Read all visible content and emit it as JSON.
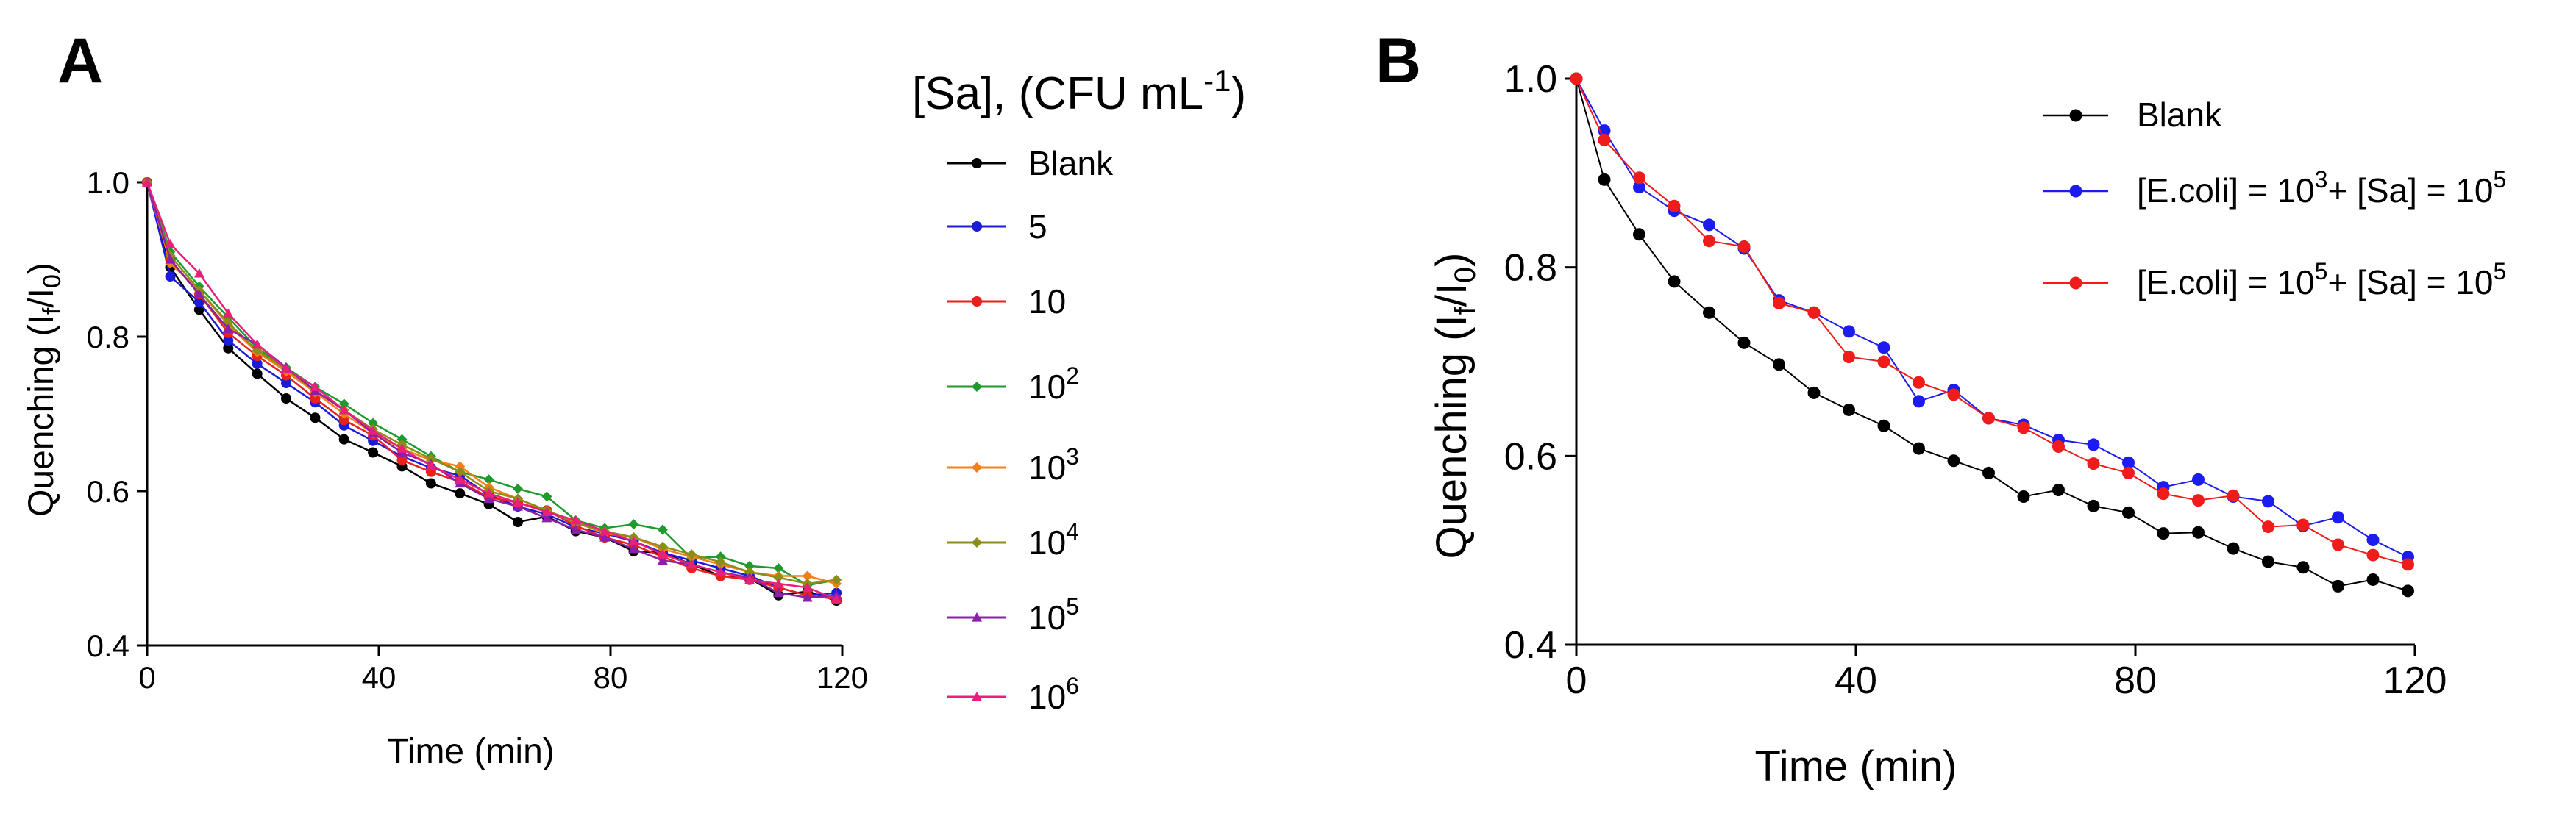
{
  "panels": {
    "a": {
      "letter": "A"
    },
    "b": {
      "letter": "B"
    }
  },
  "chart_data": [
    {
      "type": "line",
      "panel": "A",
      "xlabel": "Time (min)",
      "ylabel": "Quenching (I_f/I_0)",
      "ylabel_parts": {
        "main": "Quenching (I",
        "sub1": "f",
        "mid": "/I",
        "sub2": "0",
        "end": ")"
      },
      "xlim": [
        0,
        120
      ],
      "ylim": [
        0.4,
        1.0
      ],
      "x_ticks": [
        0,
        40,
        80,
        120
      ],
      "x_tick_labels": [
        "0",
        "40",
        "80",
        "120"
      ],
      "y_ticks": [
        0.4,
        0.6,
        0.8,
        1.0
      ],
      "y_tick_labels": [
        "0.4",
        "0.6",
        "0.8",
        "1.0"
      ],
      "legend_title": {
        "main": "[Sa], (CFU mL",
        "sup": "-1",
        "end": ")"
      },
      "legend_placement": "right",
      "grid": false,
      "x": [
        0,
        4,
        9,
        14,
        19,
        24,
        29,
        34,
        39,
        44,
        49,
        54,
        59,
        64,
        69,
        74,
        79,
        84,
        89,
        94,
        99,
        104,
        109,
        114,
        119
      ],
      "series": [
        {
          "name": "Blank",
          "label": {
            "base": "Blank",
            "sup": ""
          },
          "color": "#000000",
          "marker": "circle",
          "values": [
            1.0,
            0.89,
            0.835,
            0.785,
            0.752,
            0.72,
            0.695,
            0.667,
            0.65,
            0.632,
            0.61,
            0.597,
            0.583,
            0.56,
            0.567,
            0.548,
            0.54,
            0.522,
            0.52,
            0.505,
            0.49,
            0.487,
            0.465,
            0.47,
            0.458
          ]
        },
        {
          "name": "5",
          "label": {
            "base": "5",
            "sup": ""
          },
          "color": "#1c1cd8",
          "marker": "circle",
          "values": [
            1.0,
            0.878,
            0.845,
            0.795,
            0.765,
            0.74,
            0.715,
            0.685,
            0.665,
            0.645,
            0.63,
            0.62,
            0.595,
            0.58,
            0.57,
            0.553,
            0.545,
            0.535,
            0.52,
            0.51,
            0.5,
            0.49,
            0.475,
            0.465,
            0.468
          ]
        },
        {
          "name": "10",
          "label": {
            "base": "10",
            "sup": ""
          },
          "color": "#e8211c",
          "marker": "circle",
          "values": [
            1.0,
            0.9,
            0.855,
            0.805,
            0.775,
            0.75,
            0.72,
            0.692,
            0.672,
            0.64,
            0.625,
            0.612,
            0.592,
            0.585,
            0.575,
            0.555,
            0.54,
            0.53,
            0.515,
            0.5,
            0.49,
            0.485,
            0.475,
            0.465,
            0.46
          ]
        },
        {
          "name": "10^2",
          "label": {
            "base": "10",
            "sup": "2"
          },
          "color": "#1e9a2e",
          "marker": "diamond",
          "values": [
            1.0,
            0.91,
            0.865,
            0.825,
            0.785,
            0.76,
            0.735,
            0.713,
            0.688,
            0.667,
            0.645,
            0.625,
            0.615,
            0.603,
            0.593,
            0.562,
            0.552,
            0.557,
            0.55,
            0.513,
            0.515,
            0.503,
            0.5,
            0.478,
            0.485
          ]
        },
        {
          "name": "10^3",
          "label": {
            "base": "10",
            "sup": "3"
          },
          "color": "#f57f17",
          "marker": "diamond",
          "values": [
            1.0,
            0.895,
            0.86,
            0.815,
            0.78,
            0.755,
            0.728,
            0.7,
            0.675,
            0.655,
            0.64,
            0.632,
            0.605,
            0.59,
            0.575,
            0.56,
            0.545,
            0.54,
            0.525,
            0.515,
            0.505,
            0.495,
            0.49,
            0.49,
            0.48
          ]
        },
        {
          "name": "10^4",
          "label": {
            "base": "10",
            "sup": "4"
          },
          "color": "#8c8c1a",
          "marker": "diamond",
          "values": [
            1.0,
            0.905,
            0.86,
            0.818,
            0.782,
            0.758,
            0.73,
            0.705,
            0.68,
            0.66,
            0.642,
            0.625,
            0.6,
            0.59,
            0.575,
            0.558,
            0.548,
            0.54,
            0.528,
            0.518,
            0.508,
            0.495,
            0.488,
            0.48,
            0.485
          ]
        },
        {
          "name": "10^5",
          "label": {
            "base": "10",
            "sup": "5"
          },
          "color": "#8b1fa9",
          "marker": "triangle",
          "values": [
            1.0,
            0.9,
            0.855,
            0.81,
            0.79,
            0.76,
            0.73,
            0.705,
            0.675,
            0.65,
            0.635,
            0.61,
            0.59,
            0.58,
            0.565,
            0.55,
            0.54,
            0.525,
            0.51,
            0.505,
            0.495,
            0.488,
            0.468,
            0.462,
            0.465
          ]
        },
        {
          "name": "10^6",
          "label": {
            "base": "10",
            "sup": "6"
          },
          "color": "#e8207a",
          "marker": "triangle",
          "values": [
            1.0,
            0.92,
            0.882,
            0.83,
            0.79,
            0.758,
            0.735,
            0.705,
            0.678,
            0.655,
            0.633,
            0.615,
            0.597,
            0.585,
            0.573,
            0.562,
            0.548,
            0.535,
            0.518,
            0.505,
            0.495,
            0.485,
            0.48,
            0.475,
            0.46
          ]
        }
      ]
    },
    {
      "type": "line",
      "panel": "B",
      "xlabel": "Time (min)",
      "ylabel": "Quenching (I_f/I_0)",
      "ylabel_parts": {
        "main": "Quenching (I",
        "sub1": "f",
        "mid": "/I",
        "sub2": "0",
        "end": ")"
      },
      "xlim": [
        0,
        120
      ],
      "ylim": [
        0.4,
        1.0
      ],
      "x_ticks": [
        0,
        40,
        80,
        120
      ],
      "x_tick_labels": [
        "0",
        "40",
        "80",
        "120"
      ],
      "y_ticks": [
        0.4,
        0.6,
        0.8,
        1.0
      ],
      "y_tick_labels": [
        "0.4",
        "0.6",
        "0.8",
        "1.0"
      ],
      "legend_placement": "top-right",
      "grid": false,
      "x": [
        0,
        4,
        9,
        14,
        19,
        24,
        29,
        34,
        39,
        44,
        49,
        54,
        59,
        64,
        69,
        74,
        79,
        84,
        89,
        94,
        99,
        104,
        109,
        114,
        119
      ],
      "series": [
        {
          "name": "Blank",
          "label": {
            "parts": [
              "Blank"
            ],
            "sups": []
          },
          "color": "#000000",
          "marker": "circle",
          "values": [
            1.0,
            0.893,
            0.835,
            0.785,
            0.752,
            0.72,
            0.697,
            0.667,
            0.649,
            0.632,
            0.608,
            0.595,
            0.582,
            0.557,
            0.564,
            0.547,
            0.54,
            0.518,
            0.519,
            0.502,
            0.488,
            0.482,
            0.462,
            0.469,
            0.457
          ]
        },
        {
          "name": "[E.coli] = 10^3+ [Sa] = 10^5",
          "label": {
            "parts": [
              "[E.coli] = 10",
              "+ [Sa] = 10"
            ],
            "sups": [
              "3",
              "5"
            ]
          },
          "color": "#1c1cf0",
          "marker": "circle",
          "values": [
            1.0,
            0.945,
            0.885,
            0.86,
            0.845,
            0.82,
            0.765,
            0.752,
            0.732,
            0.715,
            0.658,
            0.67,
            0.64,
            0.633,
            0.617,
            0.612,
            0.593,
            0.567,
            0.575,
            0.557,
            0.552,
            0.526,
            0.535,
            0.511,
            0.493
          ]
        },
        {
          "name": "[E.coli] = 10^5+ [Sa] = 10^5",
          "label": {
            "parts": [
              "[E.coli] = 10",
              "+ [Sa] = 10"
            ],
            "sups": [
              "5",
              "5"
            ]
          },
          "color": "#f01c1c",
          "marker": "circle",
          "values": [
            1.0,
            0.935,
            0.895,
            0.865,
            0.828,
            0.822,
            0.762,
            0.752,
            0.705,
            0.7,
            0.678,
            0.665,
            0.64,
            0.63,
            0.61,
            0.592,
            0.582,
            0.56,
            0.553,
            0.558,
            0.525,
            0.527,
            0.506,
            0.495,
            0.485
          ]
        }
      ]
    }
  ]
}
